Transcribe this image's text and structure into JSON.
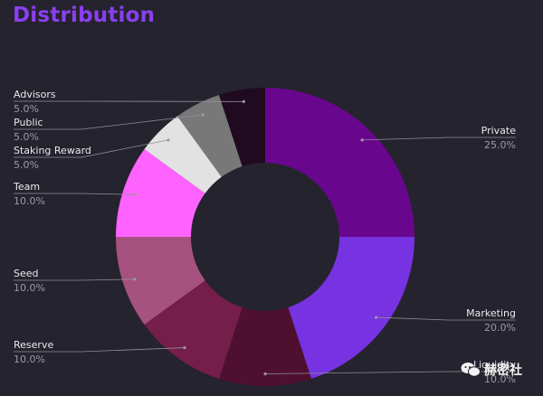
{
  "title": "Distribution",
  "watermark": "赫密社",
  "chart_data": {
    "type": "pie",
    "donut": true,
    "title": "Distribution",
    "slices": [
      {
        "label": "Private",
        "value": 25.0,
        "pct_text": "25.0%",
        "color": "#68078e",
        "side": "right"
      },
      {
        "label": "Marketing",
        "value": 20.0,
        "pct_text": "20.0%",
        "color": "#7732e2",
        "side": "right"
      },
      {
        "label": "Liquidity",
        "value": 10.0,
        "pct_text": "10.0%",
        "color": "#4f1030",
        "side": "right"
      },
      {
        "label": "Reserve",
        "value": 10.0,
        "pct_text": "10.0%",
        "color": "#751e4a",
        "side": "left"
      },
      {
        "label": "Seed",
        "value": 10.0,
        "pct_text": "10.0%",
        "color": "#a6527f",
        "side": "left"
      },
      {
        "label": "Team",
        "value": 10.0,
        "pct_text": "10.0%",
        "color": "#ff63ff",
        "side": "left"
      },
      {
        "label": "Staking Reward",
        "value": 5.0,
        "pct_text": "5.0%",
        "color": "#e2e2e2",
        "side": "left"
      },
      {
        "label": "Public",
        "value": 5.0,
        "pct_text": "5.0%",
        "color": "#787878",
        "side": "left"
      },
      {
        "label": "Advisors",
        "value": 5.0,
        "pct_text": "5.0%",
        "color": "#200a20",
        "side": "left"
      }
    ]
  }
}
